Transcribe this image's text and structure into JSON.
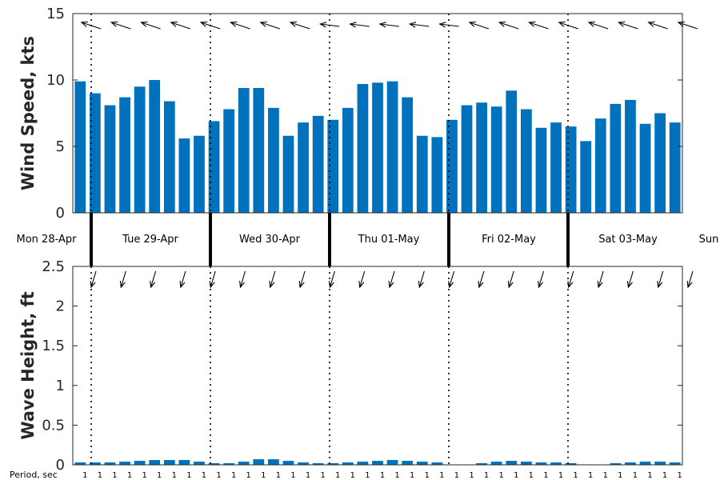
{
  "chart_data": [
    {
      "type": "bar",
      "ylabel": "Wind Speed, kts",
      "ylim": [
        0,
        15
      ],
      "yticks": [
        0,
        5,
        10,
        15
      ],
      "color": "#0072BD",
      "values": [
        9.9,
        9.0,
        8.1,
        8.7,
        9.5,
        10.0,
        8.4,
        5.6,
        5.8,
        6.9,
        7.8,
        9.4,
        9.4,
        7.9,
        5.8,
        6.8,
        7.3,
        7.0,
        7.9,
        9.7,
        9.8,
        9.9,
        8.7,
        5.8,
        5.7,
        7.0,
        8.1,
        8.3,
        8.0,
        9.2,
        7.8,
        6.4,
        6.8,
        6.5,
        5.4,
        7.1,
        8.2,
        8.5,
        6.7,
        7.5,
        6.8
      ],
      "direction_arrows": "wind-direction-arrows"
    },
    {
      "type": "bar",
      "ylabel": "Wave Height, ft",
      "ylim": [
        0,
        2.5
      ],
      "yticks": [
        0,
        0.5,
        1,
        1.5,
        2,
        2.5
      ],
      "ytick_labels": [
        "0",
        "0.5",
        "1",
        "1.5",
        "2",
        "2.5"
      ],
      "color": "#0072BD",
      "values": [
        0.03,
        0.03,
        0.03,
        0.04,
        0.05,
        0.06,
        0.06,
        0.06,
        0.04,
        0.02,
        0.02,
        0.04,
        0.07,
        0.07,
        0.05,
        0.03,
        0.02,
        0.02,
        0.03,
        0.04,
        0.05,
        0.06,
        0.05,
        0.04,
        0.03,
        0.0,
        0.0,
        0.02,
        0.04,
        0.05,
        0.04,
        0.03,
        0.03,
        0.02,
        0.0,
        0.0,
        0.02,
        0.03,
        0.04,
        0.04,
        0.03
      ],
      "direction_arrows": "wave-direction-arrows"
    }
  ],
  "days": [
    "Mon 28-Apr",
    "Tue 29-Apr",
    "Wed 30-Apr",
    "Thu 01-May",
    "Fri 02-May",
    "Sat 03-May",
    "Sun"
  ],
  "period_title": "Period, sec",
  "period_values": [
    "1",
    "1",
    "1",
    "1",
    "1",
    "1",
    "1",
    "1",
    "1",
    "1",
    "1",
    "1",
    "1",
    "1",
    "1",
    "1",
    "1",
    "1",
    "1",
    "1",
    "1",
    "1",
    "1",
    "1",
    "1",
    "1",
    "1",
    "1",
    "1",
    "1",
    "1",
    "1",
    "1",
    "1",
    "1",
    "1",
    "1",
    "1",
    "1",
    "1",
    "1"
  ]
}
